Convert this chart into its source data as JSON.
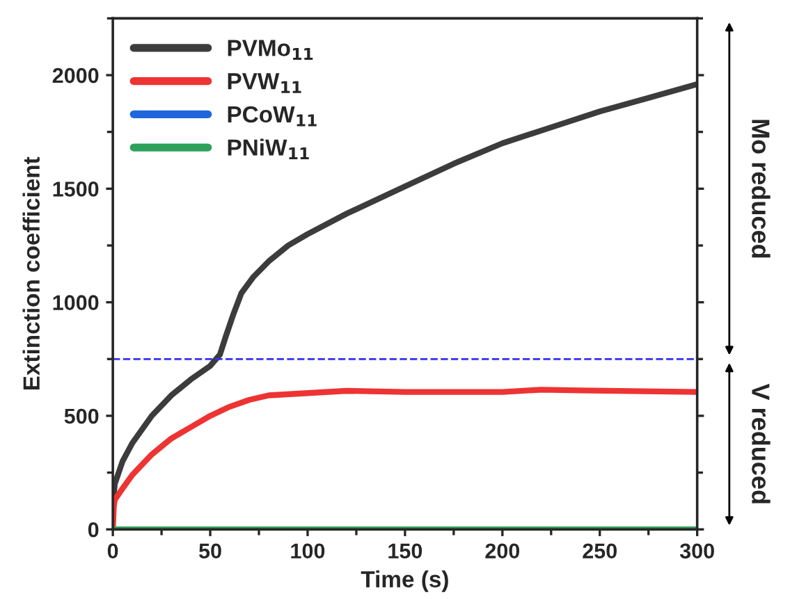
{
  "chart_data": {
    "type": "line",
    "xlabel": "Time (s)",
    "ylabel": "Extinction coefficient",
    "xlim": [
      0,
      300
    ],
    "xticks": [
      0,
      50,
      100,
      150,
      200,
      250,
      300
    ],
    "ylim": [
      0,
      2250
    ],
    "yticks": [
      0,
      500,
      1000,
      1500,
      2000
    ],
    "legend": "top left",
    "grid": false,
    "line_style": "solid",
    "marker": "none",
    "series": [
      {
        "name": "PVMo$_{11}$",
        "color": "#3c3c3c",
        "x": [
          0,
          1,
          5,
          10,
          20,
          30,
          40,
          50,
          55,
          58,
          62,
          66,
          72,
          80,
          90,
          100,
          120,
          150,
          175,
          200,
          225,
          250,
          275,
          300
        ],
        "values": [
          100,
          200,
          300,
          380,
          500,
          590,
          660,
          720,
          770,
          850,
          950,
          1040,
          1110,
          1180,
          1250,
          1300,
          1390,
          1510,
          1610,
          1700,
          1770,
          1840,
          1900,
          1960
        ]
      },
      {
        "name": "PVW$_{11}$",
        "color": "#ee3333",
        "x": [
          0,
          0.5,
          1,
          5,
          10,
          20,
          30,
          40,
          50,
          60,
          70,
          80,
          100,
          120,
          150,
          200,
          220,
          240,
          300
        ],
        "values": [
          0,
          100,
          130,
          180,
          240,
          330,
          400,
          450,
          500,
          540,
          570,
          590,
          600,
          610,
          605,
          605,
          615,
          612,
          605
        ]
      },
      {
        "name": "PCoW$_{11}$",
        "color": "#1f66dd"
      },
      {
        "name": "PNiW$_{11}$",
        "color": "#2ea05a",
        "x": [
          0,
          300
        ],
        "values": [
          0,
          0
        ]
      }
    ],
    "ref_lines": [
      {
        "axis": "y",
        "value": 750,
        "color": "#3333ee",
        "line_style": "dashed"
      }
    ],
    "annotations": [
      "Mo reduced",
      "V reduced"
    ]
  }
}
